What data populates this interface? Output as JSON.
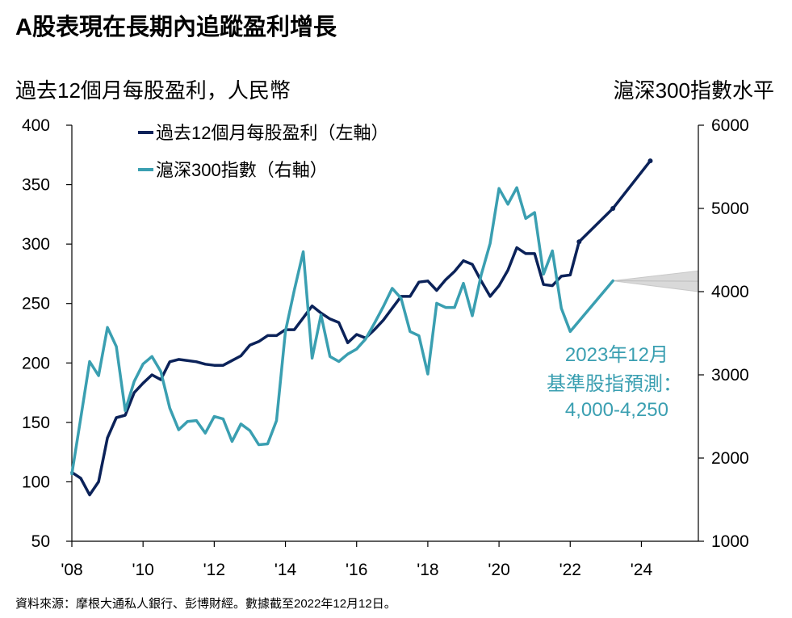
{
  "title": "A股表現在長期內追蹤盈利增長",
  "left_axis_title": "過去12個月每股盈利，人民幣",
  "right_axis_title": "滬深300指數水平",
  "source": "資料來源：摩根大通私人銀行、彭博財經。數據截至2022年12月12日。",
  "annotation": [
    "2023年12月",
    "基準股指預測：",
    "4,000-4,250"
  ],
  "colors": {
    "eps": "#0b2259",
    "index": "#3a9fb1",
    "forecast_band": "#d9d9d9",
    "axis": "#000000"
  },
  "chart_data": {
    "type": "line",
    "x_tick_labels": [
      "'08",
      "'10",
      "'12",
      "'14",
      "'16",
      "'18",
      "'20",
      "'22",
      "'24"
    ],
    "x_ticks": [
      2008,
      2010,
      2012,
      2014,
      2016,
      2018,
      2020,
      2022,
      2024
    ],
    "xlim": [
      2008,
      2025.6
    ],
    "left_axis": {
      "ylim": [
        50,
        400
      ],
      "ticks": [
        50,
        100,
        150,
        200,
        250,
        300,
        350,
        400
      ]
    },
    "right_axis": {
      "ylim": [
        1000,
        6000
      ],
      "ticks": [
        1000,
        2000,
        3000,
        4000,
        5000,
        6000
      ]
    },
    "grid": false,
    "legend_position": "top-left",
    "series": [
      {
        "name": "過去12個月每股盈利（左軸）",
        "axis": "left",
        "color": "#0b2259",
        "points": [
          [
            2008.0,
            108
          ],
          [
            2008.25,
            103
          ],
          [
            2008.5,
            89
          ],
          [
            2008.75,
            100
          ],
          [
            2009.0,
            137
          ],
          [
            2009.25,
            154
          ],
          [
            2009.5,
            156
          ],
          [
            2009.75,
            175
          ],
          [
            2010.0,
            183
          ],
          [
            2010.25,
            190
          ],
          [
            2010.5,
            186
          ],
          [
            2010.75,
            201
          ],
          [
            2011.0,
            203
          ],
          [
            2011.5,
            201
          ],
          [
            2011.75,
            199
          ],
          [
            2012.0,
            198
          ],
          [
            2012.25,
            198
          ],
          [
            2012.5,
            202
          ],
          [
            2012.75,
            206
          ],
          [
            2013.0,
            215
          ],
          [
            2013.25,
            218
          ],
          [
            2013.5,
            223
          ],
          [
            2013.75,
            223
          ],
          [
            2014.0,
            228
          ],
          [
            2014.25,
            228
          ],
          [
            2014.5,
            238
          ],
          [
            2014.75,
            248
          ],
          [
            2015.0,
            242
          ],
          [
            2015.25,
            237
          ],
          [
            2015.5,
            234
          ],
          [
            2015.75,
            217
          ],
          [
            2016.0,
            224
          ],
          [
            2016.25,
            221
          ],
          [
            2016.5,
            228
          ],
          [
            2016.75,
            236
          ],
          [
            2017.0,
            246
          ],
          [
            2017.25,
            256
          ],
          [
            2017.5,
            256
          ],
          [
            2017.75,
            268
          ],
          [
            2018.0,
            269
          ],
          [
            2018.25,
            261
          ],
          [
            2018.5,
            270
          ],
          [
            2018.75,
            277
          ],
          [
            2019.0,
            286
          ],
          [
            2019.25,
            283
          ],
          [
            2019.5,
            269
          ],
          [
            2019.75,
            256
          ],
          [
            2020.0,
            265
          ],
          [
            2020.25,
            278
          ],
          [
            2020.5,
            297
          ],
          [
            2020.75,
            292
          ],
          [
            2021.0,
            292
          ],
          [
            2021.25,
            266
          ],
          [
            2021.5,
            265
          ],
          [
            2021.75,
            273
          ],
          [
            2022.0,
            274
          ],
          [
            2022.25,
            302
          ],
          [
            2023.2,
            330
          ],
          [
            2024.25,
            370
          ]
        ],
        "markers": [
          [
            2022.25,
            302
          ],
          [
            2023.2,
            330
          ],
          [
            2024.25,
            370
          ]
        ]
      },
      {
        "name": "滬深300指數（右軸）",
        "axis": "right",
        "color": "#3a9fb1",
        "points": [
          [
            2008.0,
            1810
          ],
          [
            2008.25,
            2480
          ],
          [
            2008.5,
            3160
          ],
          [
            2008.75,
            2990
          ],
          [
            2009.0,
            3570
          ],
          [
            2009.25,
            3340
          ],
          [
            2009.5,
            2570
          ],
          [
            2009.75,
            2920
          ],
          [
            2010.0,
            3130
          ],
          [
            2010.25,
            3220
          ],
          [
            2010.5,
            3040
          ],
          [
            2010.75,
            2600
          ],
          [
            2011.0,
            2340
          ],
          [
            2011.25,
            2440
          ],
          [
            2011.5,
            2450
          ],
          [
            2011.75,
            2300
          ],
          [
            2012.0,
            2500
          ],
          [
            2012.25,
            2470
          ],
          [
            2012.5,
            2200
          ],
          [
            2012.75,
            2410
          ],
          [
            2013.0,
            2330
          ],
          [
            2013.25,
            2160
          ],
          [
            2013.5,
            2170
          ],
          [
            2013.75,
            2450
          ],
          [
            2014.0,
            3520
          ],
          [
            2014.25,
            4020
          ],
          [
            2014.5,
            4480
          ],
          [
            2014.75,
            3200
          ],
          [
            2015.0,
            3720
          ],
          [
            2015.25,
            3220
          ],
          [
            2015.5,
            3160
          ],
          [
            2015.75,
            3250
          ],
          [
            2016.0,
            3310
          ],
          [
            2016.25,
            3430
          ],
          [
            2016.5,
            3620
          ],
          [
            2016.75,
            3820
          ],
          [
            2017.0,
            4040
          ],
          [
            2017.25,
            3920
          ],
          [
            2017.5,
            3520
          ],
          [
            2017.75,
            3470
          ],
          [
            2018.0,
            3010
          ],
          [
            2018.25,
            3860
          ],
          [
            2018.5,
            3810
          ],
          [
            2018.75,
            3810
          ],
          [
            2019.0,
            4100
          ],
          [
            2019.25,
            3710
          ],
          [
            2019.5,
            4200
          ],
          [
            2019.75,
            4580
          ],
          [
            2020.0,
            5240
          ],
          [
            2020.25,
            5050
          ],
          [
            2020.5,
            5250
          ],
          [
            2020.75,
            4880
          ],
          [
            2021.0,
            4950
          ],
          [
            2021.25,
            4210
          ],
          [
            2021.5,
            4490
          ],
          [
            2021.75,
            3800
          ],
          [
            2022.0,
            3520
          ],
          [
            2023.2,
            4130
          ]
        ]
      }
    ],
    "forecast": {
      "start": {
        "x": 2023.2,
        "y": 4130
      },
      "end_x": 2025.6,
      "range": [
        4000,
        4250
      ]
    }
  }
}
